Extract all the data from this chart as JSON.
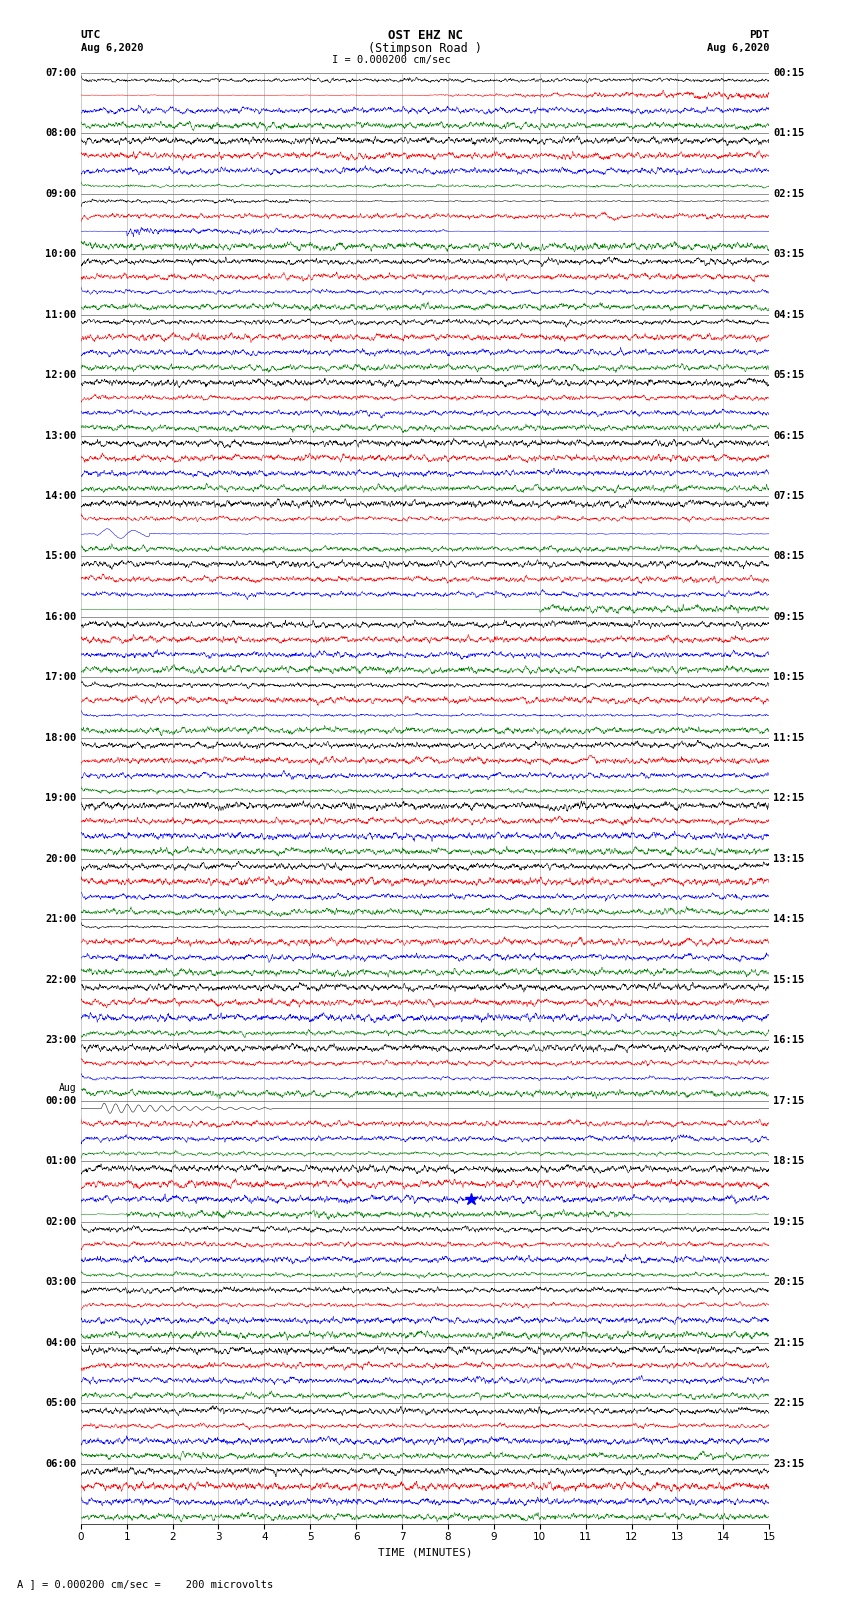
{
  "title_line1": "OST EHZ NC",
  "title_line2": "(Stimpson Road )",
  "title_scale": "I = 0.000200 cm/sec",
  "left_header_line1": "UTC",
  "left_header_line2": "Aug 6,2020",
  "right_header_line1": "PDT",
  "right_header_line2": "Aug 6,2020",
  "xlabel": "TIME (MINUTES)",
  "footer": "A ] = 0.000200 cm/sec =    200 microvolts",
  "bg_color": "#ffffff",
  "grid_color": "#808080",
  "trace_colors": [
    "black",
    "red",
    "blue",
    "green"
  ],
  "n_rows": 24,
  "minutes_per_row": 15,
  "utc_labels": [
    "07:00",
    "08:00",
    "09:00",
    "10:00",
    "11:00",
    "12:00",
    "13:00",
    "14:00",
    "15:00",
    "16:00",
    "17:00",
    "18:00",
    "19:00",
    "20:00",
    "21:00",
    "22:00",
    "23:00",
    "Aug\n00:00",
    "01:00",
    "02:00",
    "03:00",
    "04:00",
    "05:00",
    "06:00"
  ],
  "pdt_labels": [
    "00:15",
    "01:15",
    "02:15",
    "03:15",
    "04:15",
    "05:15",
    "06:15",
    "07:15",
    "08:15",
    "09:15",
    "10:15",
    "11:15",
    "12:15",
    "13:15",
    "14:15",
    "15:15",
    "16:15",
    "17:15",
    "18:15",
    "19:15",
    "20:15",
    "21:15",
    "22:15",
    "23:15"
  ],
  "fig_width": 8.5,
  "fig_height": 16.13,
  "dpi": 100
}
